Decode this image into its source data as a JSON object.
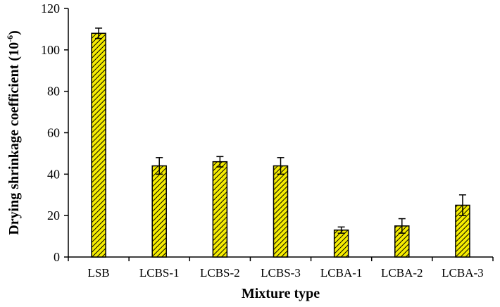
{
  "chart_data": {
    "type": "bar",
    "xlabel": "Mixture type",
    "ylabel": "Drying shrinkage coefficient (10",
    "ylabel_sup": "-6",
    "ylabel_close": ")",
    "ylim": [
      0,
      120
    ],
    "yticks": [
      0,
      20,
      40,
      60,
      80,
      100,
      120
    ],
    "ytick_labels": [
      "0",
      "20",
      "40",
      "60",
      "80",
      "100",
      "120"
    ],
    "categories": [
      "LSB",
      "LCBS-1",
      "LCBS-2",
      "LCBS-3",
      "LCBA-1",
      "LCBA-2",
      "LCBA-3"
    ],
    "values": [
      108,
      44,
      46,
      44,
      13,
      15,
      25
    ],
    "errors": [
      2.5,
      4,
      2.5,
      4,
      1.5,
      3.5,
      5
    ],
    "colors": {
      "bar_fill": "#f5ec00",
      "bar_hatch": "#000000",
      "axis": "#000000"
    },
    "grid": false,
    "legend": "none"
  }
}
